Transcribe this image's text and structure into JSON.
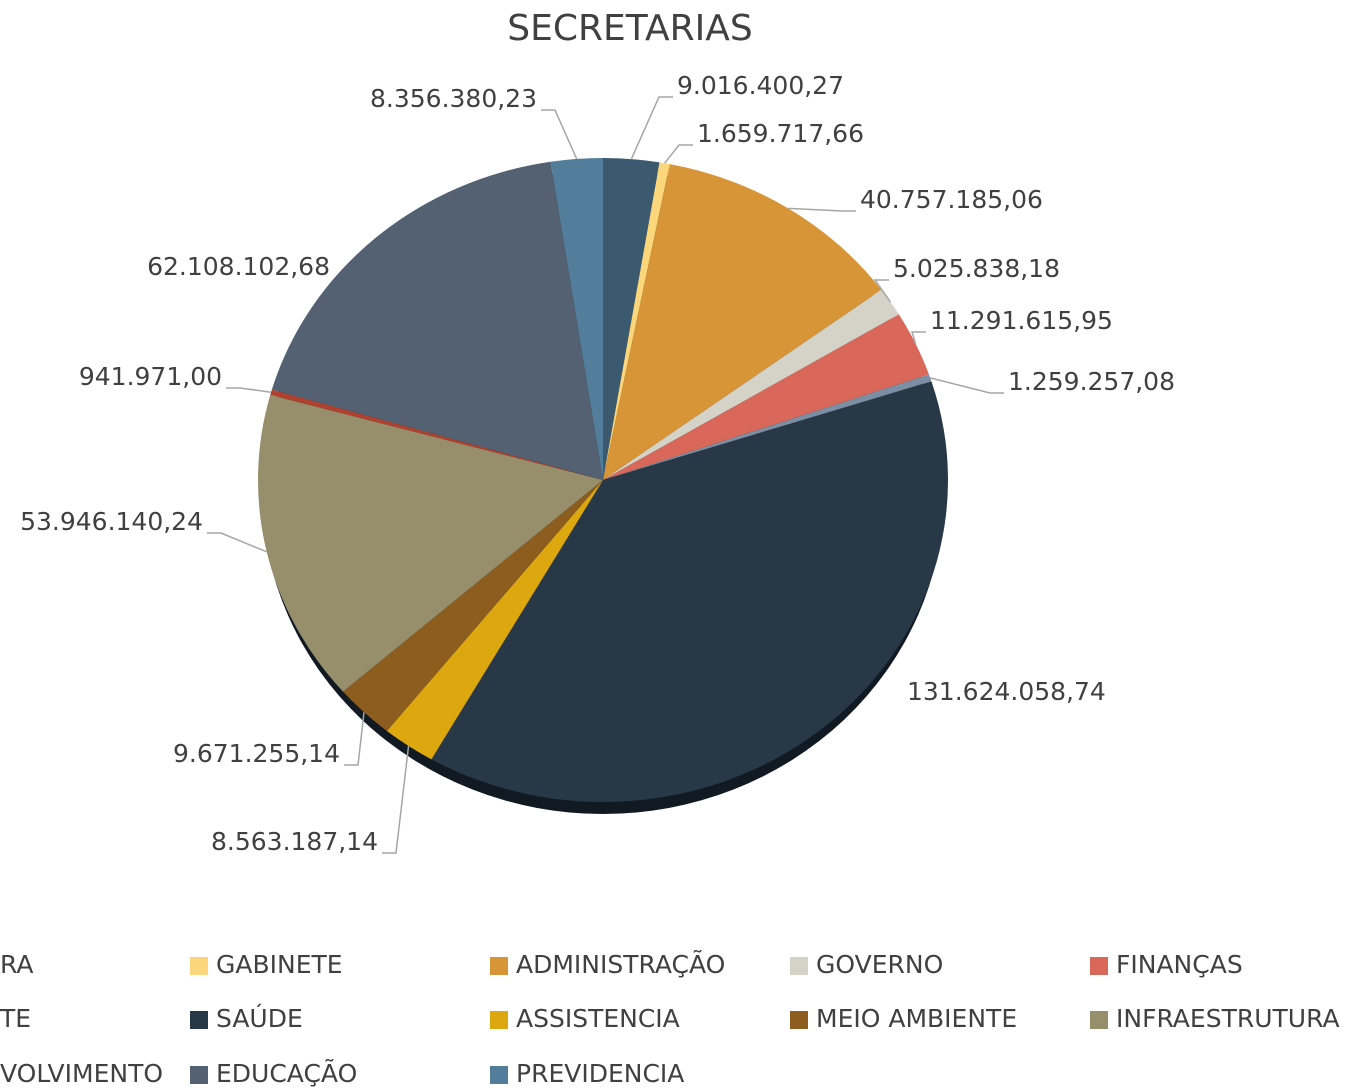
{
  "chart_data": {
    "type": "pie",
    "title": "SECRETARIAS",
    "categories": [
      "RA",
      "GABINETE",
      "ADMINISTRAÇÃO",
      "GOVERNO",
      "FINANÇAS",
      "TE",
      "SAÚDE",
      "ASSISTENCIA",
      "MEIO AMBIENTE",
      "INFRAESTRUTURA",
      "VOLVIMENTO",
      "EDUCAÇÃO",
      "PREVIDENCIA"
    ],
    "values": [
      9016400.27,
      1659717.66,
      40757185.06,
      5025838.18,
      11291615.95,
      1259257.08,
      131624058.74,
      8563187.14,
      9671255.14,
      53946140.24,
      941971.0,
      62108102.68,
      8356380.23
    ],
    "value_labels": [
      "9.016.400,27",
      "1.659.717,66",
      "40.757.185,06",
      "5.025.838,18",
      "11.291.615,95",
      "1.259.257,08",
      "131.624.058,74",
      "8.563.187,14",
      "9.671.255,14",
      "53.946.140,24",
      "941.971,00",
      "62.108.102,68",
      "8.356.380,23"
    ],
    "colors": [
      "#3b5a6f",
      "#fbd67a",
      "#d79537",
      "#d5d3c7",
      "#d9685a",
      "#7b8ea3",
      "#283847",
      "#dda80f",
      "#8c5d1f",
      "#978f6c",
      "#b0412f",
      "#536172",
      "#527e9c"
    ],
    "legend": "bottom"
  }
}
